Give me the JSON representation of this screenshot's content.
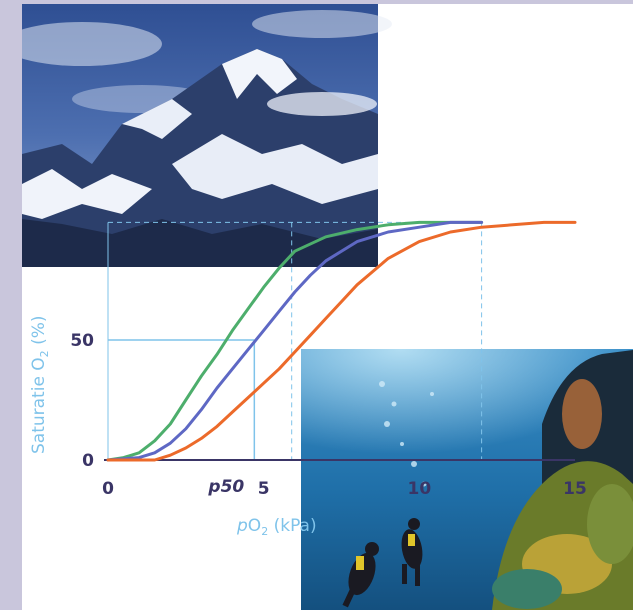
{
  "colors": {
    "background": "#c9c6dc",
    "axis": "#3a3566",
    "guide": "#7fc3ea",
    "series": [
      "#4dae6c",
      "#5e68c4",
      "#ec6a2a"
    ]
  },
  "icons": [
    "mountain-photo",
    "underwater-diver-photo"
  ],
  "chart_data": {
    "type": "line",
    "xlabel_prefix": "p",
    "xlabel_main": "O",
    "xlabel_sub": "2",
    "xlabel_suffix": " (kPa)",
    "ylabel_main": "Saturatie O",
    "ylabel_sub": "2",
    "ylabel_suffix": " (%)",
    "xlim": [
      0,
      15
    ],
    "ylim": [
      0,
      100
    ],
    "x_ticks": [
      "0",
      "5",
      "10",
      "15"
    ],
    "x_tick_values": [
      0,
      5,
      10,
      15
    ],
    "y_ticks": [
      "0",
      "50"
    ],
    "y_tick_values": [
      0,
      50
    ],
    "p50_label": "p50",
    "p50_value": 4.7,
    "guide_lines_x": [
      5.9,
      12.0
    ],
    "series": [
      {
        "color": "#4dae6c",
        "x": [
          0,
          0.5,
          1.0,
          1.5,
          2.0,
          2.5,
          3.0,
          3.5,
          4.0,
          4.5,
          5.0,
          5.5,
          6.0,
          7.0,
          8.0,
          9.0,
          10.0,
          11.0,
          12.0
        ],
        "y": [
          0,
          1,
          3,
          8,
          15,
          25,
          35,
          44,
          54,
          63,
          72,
          80,
          87,
          93,
          96,
          98,
          99,
          99,
          99
        ]
      },
      {
        "color": "#5e68c4",
        "x": [
          0,
          1.0,
          1.5,
          2.0,
          2.5,
          3.0,
          3.5,
          4.0,
          4.5,
          5.0,
          5.5,
          6.0,
          6.5,
          7.0,
          8.0,
          9.0,
          10.0,
          11.0,
          12.0
        ],
        "y": [
          0,
          1,
          3,
          7,
          13,
          21,
          30,
          38,
          46,
          54,
          62,
          70,
          77,
          83,
          91,
          95,
          97,
          99,
          99
        ]
      },
      {
        "color": "#ec6a2a",
        "x": [
          0,
          1.5,
          2.0,
          2.5,
          3.0,
          3.5,
          4.0,
          4.5,
          5.0,
          5.5,
          6.0,
          6.5,
          7.0,
          7.5,
          8.0,
          9.0,
          10.0,
          11.0,
          12.0,
          13.0,
          14.0,
          15.0
        ],
        "y": [
          0,
          0,
          2,
          5,
          9,
          14,
          20,
          26,
          32,
          38,
          45,
          52,
          59,
          66,
          73,
          84,
          91,
          95,
          97,
          98,
          99,
          99
        ]
      }
    ]
  }
}
